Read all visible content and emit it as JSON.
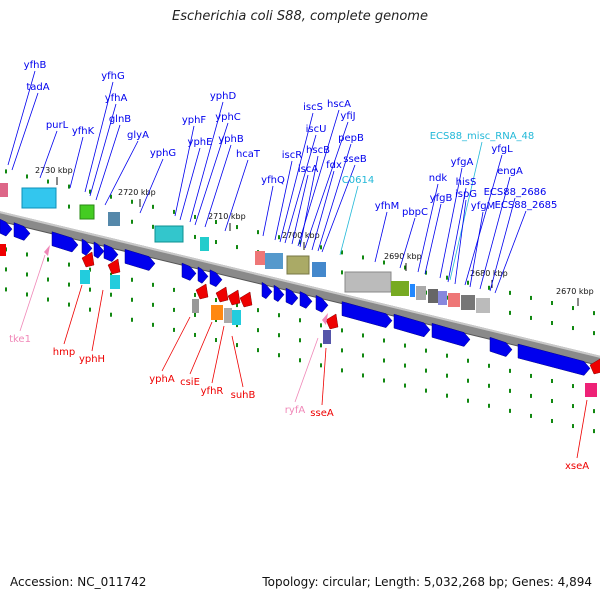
{
  "title": "Escherichia coli S88, complete genome",
  "footer": {
    "accession": "Accession: NC_011742",
    "summary": "Topology: circular; Length: 5,032,268 bp; Genes: 4,894"
  },
  "colors": {
    "cds_forward": "#0000ee",
    "cds_reverse": "#ee0000",
    "rna": "#22b8d8",
    "misc": "#f088b8",
    "backbone": "#888888",
    "tick": "#118811"
  },
  "ticks": [
    {
      "label": "2730 kbp",
      "pos": 2730
    },
    {
      "label": "2720 kbp",
      "pos": 2720
    },
    {
      "label": "2710 kbp",
      "pos": 2710
    },
    {
      "label": "2700 kbp",
      "pos": 2700
    },
    {
      "label": "2690 kbp",
      "pos": 2690
    },
    {
      "label": "2680 kbp",
      "pos": 2680
    },
    {
      "label": "2670 kbp",
      "pos": 2670
    }
  ],
  "genes": [
    {
      "name": "yfhB",
      "strand": "forward"
    },
    {
      "name": "tadA",
      "strand": "forward"
    },
    {
      "name": "purL",
      "strand": "forward"
    },
    {
      "name": "yfhK",
      "strand": "forward"
    },
    {
      "name": "yfhG",
      "strand": "forward"
    },
    {
      "name": "yfhA",
      "strand": "forward"
    },
    {
      "name": "glnB",
      "strand": "forward"
    },
    {
      "name": "glyA",
      "strand": "forward"
    },
    {
      "name": "yphG",
      "strand": "forward"
    },
    {
      "name": "yphF",
      "strand": "forward"
    },
    {
      "name": "yphE",
      "strand": "forward"
    },
    {
      "name": "yphD",
      "strand": "forward"
    },
    {
      "name": "yphC",
      "strand": "forward"
    },
    {
      "name": "yphB",
      "strand": "forward"
    },
    {
      "name": "hcaT",
      "strand": "forward"
    },
    {
      "name": "yfhQ",
      "strand": "forward"
    },
    {
      "name": "iscR",
      "strand": "forward"
    },
    {
      "name": "iscS",
      "strand": "forward"
    },
    {
      "name": "iscU",
      "strand": "forward"
    },
    {
      "name": "iscA",
      "strand": "forward"
    },
    {
      "name": "hscA",
      "strand": "forward"
    },
    {
      "name": "hscB",
      "strand": "forward"
    },
    {
      "name": "yfiJ",
      "strand": "forward"
    },
    {
      "name": "fdx",
      "strand": "forward"
    },
    {
      "name": "pepB",
      "strand": "forward"
    },
    {
      "name": "sseB",
      "strand": "forward"
    },
    {
      "name": "C0614",
      "strand": "rna"
    },
    {
      "name": "yfhM",
      "strand": "forward"
    },
    {
      "name": "pbpC",
      "strand": "forward"
    },
    {
      "name": "ndk",
      "strand": "forward"
    },
    {
      "name": "yfgB",
      "strand": "forward"
    },
    {
      "name": "ECS88_misc_RNA_48",
      "strand": "rna"
    },
    {
      "name": "yfgA",
      "strand": "forward"
    },
    {
      "name": "hisS",
      "strand": "forward"
    },
    {
      "name": "ispG",
      "strand": "forward"
    },
    {
      "name": "yfgL",
      "strand": "forward"
    },
    {
      "name": "yfgM",
      "strand": "forward"
    },
    {
      "name": "engA",
      "strand": "forward"
    },
    {
      "name": "ECS88_2686",
      "strand": "forward"
    },
    {
      "name": "ECS88_2685",
      "strand": "forward"
    },
    {
      "name": "tke1",
      "strand": "misc"
    },
    {
      "name": "hmp",
      "strand": "reverse"
    },
    {
      "name": "yphH",
      "strand": "reverse"
    },
    {
      "name": "yphA",
      "strand": "reverse"
    },
    {
      "name": "csiE",
      "strand": "reverse"
    },
    {
      "name": "yfhR",
      "strand": "reverse"
    },
    {
      "name": "suhB",
      "strand": "reverse"
    },
    {
      "name": "ryfA",
      "strand": "misc"
    },
    {
      "name": "sseA",
      "strand": "reverse"
    },
    {
      "name": "xseA",
      "strand": "reverse"
    }
  ]
}
